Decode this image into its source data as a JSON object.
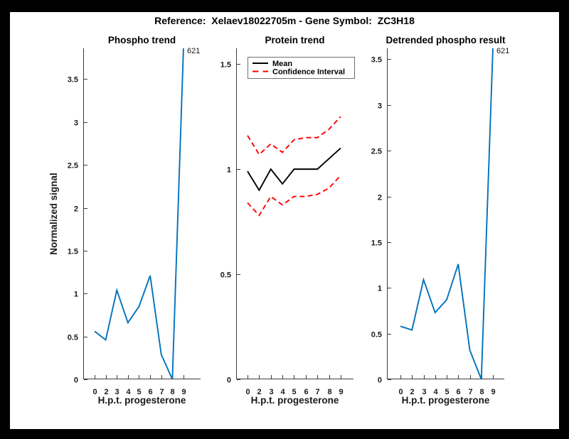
{
  "figure": {
    "title": "Reference:  Xelaev18022705m - Gene Symbol:  ZC3H18",
    "background_color": "#ffffff",
    "frame_color": "#000000",
    "axis_color": "#3c3c3c",
    "text_color": "#1a1a1a",
    "accent_blue": "#0072BD",
    "accent_red": "#FF0000"
  },
  "chart_data": [
    {
      "name": "phospho-trend",
      "type": "line",
      "title": "Phospho trend",
      "xlabel": "H.p.t. progesterone",
      "ylabel": "Normalized signal",
      "x_tick_labels": [
        "0",
        "2",
        "3",
        "4",
        "5",
        "6",
        "7",
        "8",
        "9"
      ],
      "y_ticks": [
        0,
        0.5,
        1,
        1.5,
        2,
        2.5,
        3,
        3.5
      ],
      "ylim": [
        0,
        3.86
      ],
      "grid": false,
      "legend": null,
      "series": [
        {
          "name": "phospho-signal",
          "color": "#0072BD",
          "style": "solid",
          "values": [
            0.56,
            0.46,
            1.04,
            0.66,
            0.85,
            1.21,
            0.29,
            0.0,
            621
          ]
        }
      ],
      "annotations": [
        {
          "text": "621",
          "x_index": 8,
          "placement": "clipped-top"
        }
      ]
    },
    {
      "name": "protein-trend",
      "type": "line",
      "title": "Protein trend",
      "xlabel": "H.p.t. progesterone",
      "ylabel": null,
      "x_tick_labels": [
        "0",
        "2",
        "3",
        "4",
        "5",
        "6",
        "7",
        "8",
        "9"
      ],
      "y_ticks": [
        0,
        0.5,
        1,
        1.5
      ],
      "ylim": [
        0,
        1.575
      ],
      "grid": false,
      "legend": {
        "position": "northwest",
        "entries": [
          {
            "label": "Mean",
            "color": "#000000",
            "style": "solid"
          },
          {
            "label": "Confidence Interval",
            "color": "#FF0000",
            "style": "dashed"
          }
        ]
      },
      "series": [
        {
          "name": "mean",
          "color": "#000000",
          "style": "solid",
          "values": [
            0.99,
            0.9,
            1.0,
            0.93,
            1.0,
            1.0,
            1.0,
            1.05,
            1.1
          ]
        },
        {
          "name": "confidence-interval-upper",
          "color": "#FF0000",
          "style": "dashed",
          "values": [
            1.16,
            1.07,
            1.12,
            1.08,
            1.14,
            1.15,
            1.15,
            1.19,
            1.25
          ]
        },
        {
          "name": "confidence-interval-lower",
          "color": "#FF0000",
          "style": "dashed",
          "values": [
            0.84,
            0.78,
            0.87,
            0.83,
            0.87,
            0.87,
            0.88,
            0.91,
            0.97
          ]
        }
      ],
      "annotations": []
    },
    {
      "name": "detrended-phospho-result",
      "type": "line",
      "title": "Detrended phospho result",
      "xlabel": "H.p.t. progesterone",
      "ylabel": null,
      "x_tick_labels": [
        "0",
        "2",
        "3",
        "4",
        "5",
        "6",
        "7",
        "8",
        "9"
      ],
      "y_ticks": [
        0,
        0.5,
        1,
        1.5,
        2,
        2.5,
        3,
        3.5
      ],
      "ylim": [
        0,
        3.62
      ],
      "grid": false,
      "legend": null,
      "series": [
        {
          "name": "detrended-phospho-signal",
          "color": "#0072BD",
          "style": "solid",
          "values": [
            0.58,
            0.54,
            1.09,
            0.73,
            0.87,
            1.26,
            0.32,
            0.0,
            621
          ]
        }
      ],
      "annotations": [
        {
          "text": "621",
          "x_index": 8,
          "placement": "clipped-top"
        }
      ]
    }
  ]
}
